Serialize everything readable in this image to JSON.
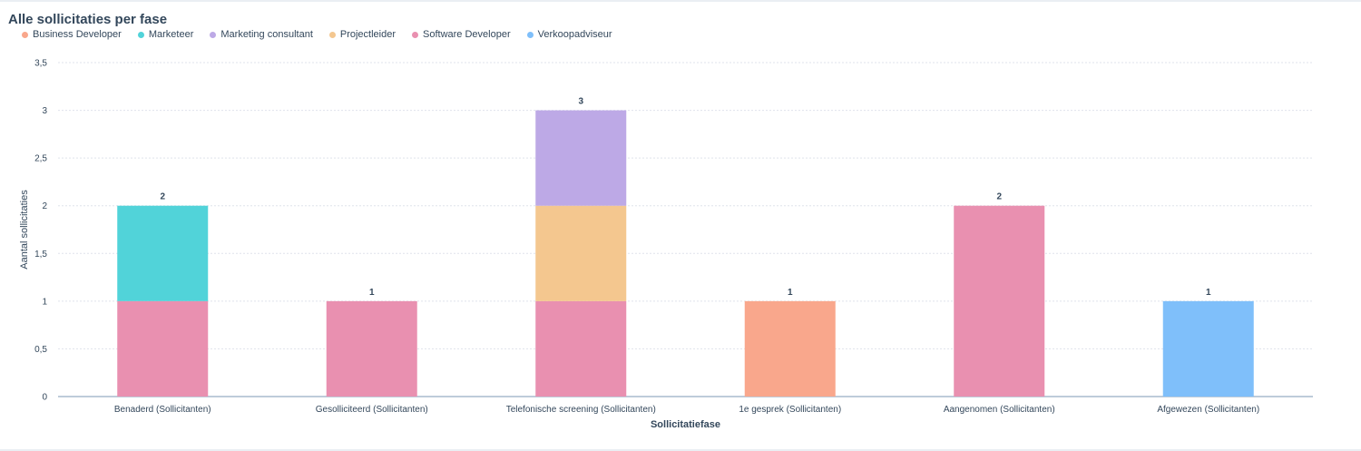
{
  "chart_data": {
    "type": "bar",
    "stacked": true,
    "title": "Alle sollicitaties per fase",
    "xlabel": "Sollicitatiefase",
    "ylabel": "Aantal sollicitaties",
    "ylim": [
      0,
      3.5
    ],
    "yticks": [
      "0",
      "0,5",
      "1",
      "1,5",
      "2",
      "2,5",
      "3",
      "3,5"
    ],
    "grid": true,
    "legend_position": "top-left",
    "categories": [
      "Benaderd (Sollicitanten)",
      "Gesolliciteerd (Sollicitanten)",
      "Telefonische screening (Sollicitanten)",
      "1e gesprek (Sollicitanten)",
      "Aangenomen (Sollicitanten)",
      "Afgewezen (Sollicitanten)"
    ],
    "series": [
      {
        "name": "Business Developer",
        "color": "#f9a78c",
        "values": [
          0,
          0,
          0,
          1,
          0,
          0
        ]
      },
      {
        "name": "Marketeer",
        "color": "#51d3d9",
        "values": [
          1,
          0,
          0,
          0,
          0,
          0
        ]
      },
      {
        "name": "Marketing consultant",
        "color": "#bda9e6",
        "values": [
          0,
          0,
          1,
          0,
          0,
          0
        ]
      },
      {
        "name": "Projectleider",
        "color": "#f4c78f",
        "values": [
          0,
          0,
          1,
          0,
          0,
          0
        ]
      },
      {
        "name": "Software Developer",
        "color": "#e990b0",
        "values": [
          1,
          1,
          1,
          0,
          2,
          0
        ]
      },
      {
        "name": "Verkoopadviseur",
        "color": "#7fbffa",
        "values": [
          0,
          0,
          0,
          0,
          0,
          1
        ]
      }
    ],
    "stack_order": [
      "Software Developer",
      "Business Developer",
      "Verkoopadviseur",
      "Marketeer",
      "Projectleider",
      "Marketing consultant"
    ],
    "totals": [
      "2",
      "1",
      "3",
      "1",
      "2",
      "1"
    ]
  }
}
